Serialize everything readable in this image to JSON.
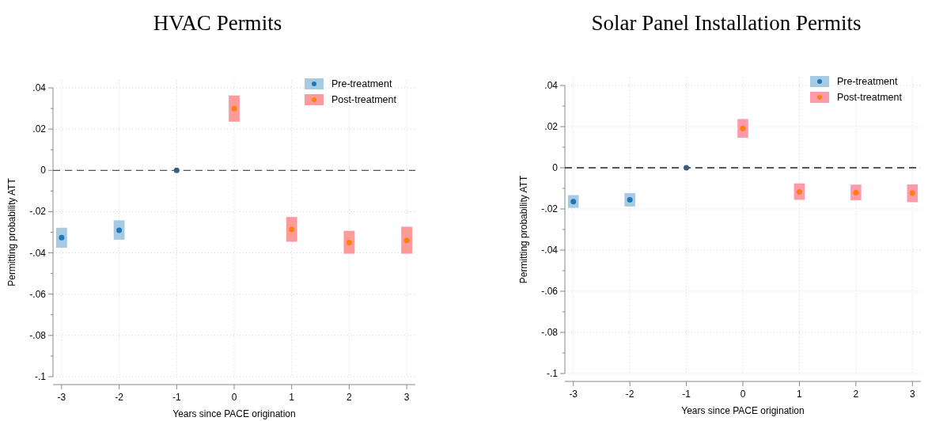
{
  "chart_data": [
    {
      "type": "scatter",
      "title": "HVAC Permits",
      "xlabel": "Years since PACE origination",
      "ylabel": "Permitting probability ATT",
      "xlim": [
        -3.15,
        3.15
      ],
      "xticks": [
        -3,
        -2,
        -1,
        0,
        1,
        2,
        3
      ],
      "ylim": [
        -0.1,
        0.04
      ],
      "yticks": [
        {
          "value": 0.04,
          "label": ".04"
        },
        {
          "value": 0.03,
          "label": null
        },
        {
          "value": 0.02,
          "label": ".02"
        },
        {
          "value": 0.01,
          "label": null
        },
        0,
        {
          "value": -0.01,
          "label": null
        },
        {
          "value": -0.02,
          "label": "-.02"
        },
        {
          "value": -0.03,
          "label": null
        },
        {
          "value": -0.04,
          "label": "-.04"
        },
        {
          "value": -0.05,
          "label": null
        },
        {
          "value": -0.06,
          "label": "-.06"
        },
        {
          "value": -0.07,
          "label": null
        },
        {
          "value": -0.08,
          "label": "-.08"
        },
        {
          "value": -0.09,
          "label": null
        },
        {
          "value": -0.1,
          "label": "-.1"
        }
      ],
      "grid": true,
      "legend": "top right",
      "marker": "circle",
      "ref_lines": [
        {
          "axis": "y",
          "value": 0,
          "color": "#555555",
          "line_style": "dashed"
        }
      ],
      "series": [
        {
          "name": "Pre-treatment",
          "color": "#a6cae3",
          "colors": [
            "#1f77b4",
            "#1f77b4",
            "#3b5e7e"
          ],
          "x": [
            -3,
            -2,
            -1
          ],
          "values": [
            -0.0326,
            -0.029,
            0
          ],
          "errors": [
            [
              -0.0375,
              -0.0278
            ],
            [
              -0.0336,
              -0.0242
            ],
            null
          ]
        },
        {
          "name": "Post-treatment",
          "color": "#fd9b9b",
          "colors": [
            "#ff7f0e",
            "#ff7f0e",
            "#ff7f0e",
            "#ff7f0e"
          ],
          "x": [
            0,
            1,
            2,
            3
          ],
          "values": [
            0.0299,
            -0.0286,
            -0.035,
            -0.0339
          ],
          "errors": [
            [
              0.0236,
              0.0363
            ],
            [
              -0.0346,
              -0.0226
            ],
            [
              -0.0404,
              -0.0293
            ],
            [
              -0.0404,
              -0.0273
            ]
          ]
        }
      ]
    },
    {
      "type": "scatter",
      "title": "Solar Panel Installation Permits",
      "xlabel": "Years since PACE origination",
      "ylabel": "Permitting probability ATT",
      "xlim": [
        -3.15,
        3.15
      ],
      "xticks": [
        -3,
        -2,
        -1,
        0,
        1,
        2,
        3
      ],
      "ylim": [
        -0.1,
        0.04
      ],
      "yticks": [
        {
          "value": 0.04,
          "label": ".04"
        },
        {
          "value": 0.03,
          "label": null
        },
        {
          "value": 0.02,
          "label": ".02"
        },
        {
          "value": 0.01,
          "label": null
        },
        0,
        {
          "value": -0.01,
          "label": null
        },
        {
          "value": -0.02,
          "label": "-.02"
        },
        {
          "value": -0.03,
          "label": null
        },
        {
          "value": -0.04,
          "label": "-.04"
        },
        {
          "value": -0.05,
          "label": null
        },
        {
          "value": -0.06,
          "label": "-.06"
        },
        {
          "value": -0.07,
          "label": null
        },
        {
          "value": -0.08,
          "label": "-.08"
        },
        {
          "value": -0.09,
          "label": null
        },
        {
          "value": -0.1,
          "label": "-.1"
        }
      ],
      "grid": true,
      "legend": "top right",
      "marker": "circle",
      "ref_lines": [
        {
          "axis": "y",
          "value": 0,
          "color": "#222222",
          "line_style": "dashed"
        }
      ],
      "series": [
        {
          "name": "Pre-treatment",
          "color": "#a6cae3",
          "colors": [
            "#1f77b4",
            "#1f77b4",
            "#3b5e7e"
          ],
          "x": [
            -3,
            -2,
            -1
          ],
          "values": [
            -0.0164,
            -0.0156,
            0
          ],
          "errors": [
            [
              -0.0195,
              -0.0133
            ],
            [
              -0.0188,
              -0.0123
            ],
            null
          ]
        },
        {
          "name": "Post-treatment",
          "color": "#ff9aab",
          "colors": [
            "#ff7f0e",
            "#ff7f0e",
            "#ff7f0e",
            "#ff7f0e"
          ],
          "x": [
            0,
            1,
            2,
            3
          ],
          "values": [
            0.0191,
            -0.0117,
            -0.0121,
            -0.0123
          ],
          "errors": [
            [
              0.0146,
              0.0237
            ],
            [
              -0.0156,
              -0.0076
            ],
            [
              -0.0158,
              -0.0082
            ],
            [
              -0.0167,
              -0.0081
            ]
          ]
        }
      ]
    }
  ]
}
